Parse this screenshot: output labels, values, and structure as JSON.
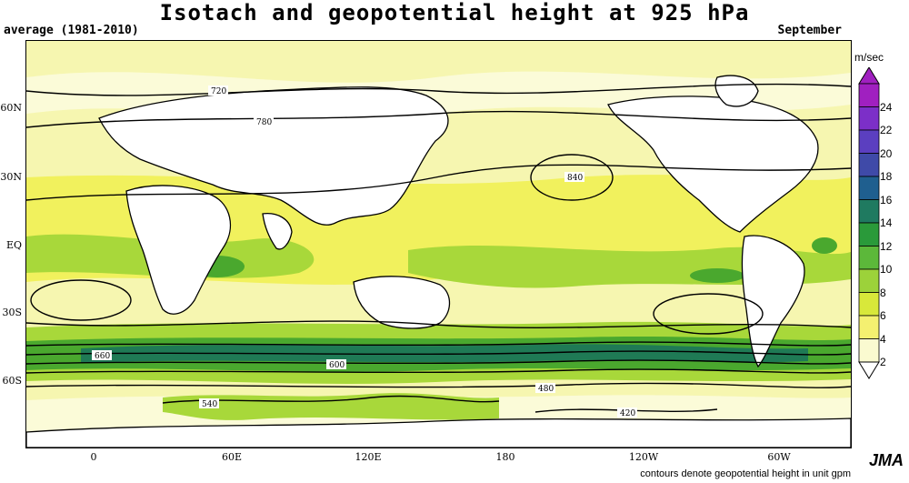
{
  "title": "Isotach and geopotential height at 925 hPa",
  "subtitle_left": "average (1981-2010)",
  "subtitle_right": "September",
  "lat_labels": [
    {
      "text": "60N"
    },
    {
      "text": "30N"
    },
    {
      "text": "EQ"
    },
    {
      "text": "30S"
    },
    {
      "text": "60S"
    }
  ],
  "lon_labels": [
    {
      "text": "0"
    },
    {
      "text": "60E"
    },
    {
      "text": "120E"
    },
    {
      "text": "180"
    },
    {
      "text": "120W"
    },
    {
      "text": "60W"
    }
  ],
  "colorbar": {
    "unit": "m/sec",
    "ticks": [
      "24",
      "22",
      "20",
      "18",
      "16",
      "14",
      "12",
      "10",
      "8",
      "6",
      "4",
      "2"
    ],
    "colors": [
      "#a020c0",
      "#7c2fc8",
      "#5b3fc0",
      "#3f4aa8",
      "#1f5f8f",
      "#1f7a60",
      "#2a9a3a",
      "#5cb83a",
      "#9cd23a",
      "#d8e83a",
      "#f4f070",
      "#fafad0"
    ]
  },
  "contour_labels": [
    "720",
    "780",
    "840",
    "660",
    "600",
    "540",
    "480",
    "420"
  ],
  "footer": "contours denote geopotential height in unit gpm",
  "brand": "JMA",
  "colors": {
    "bg": "#f6f6b0",
    "light": "#fbfbd8",
    "yellow": "#f0f03a",
    "lime": "#a8d83a",
    "green": "#4aa82e",
    "dark_green": "#1f7a55",
    "teal": "#1d6a78"
  }
}
